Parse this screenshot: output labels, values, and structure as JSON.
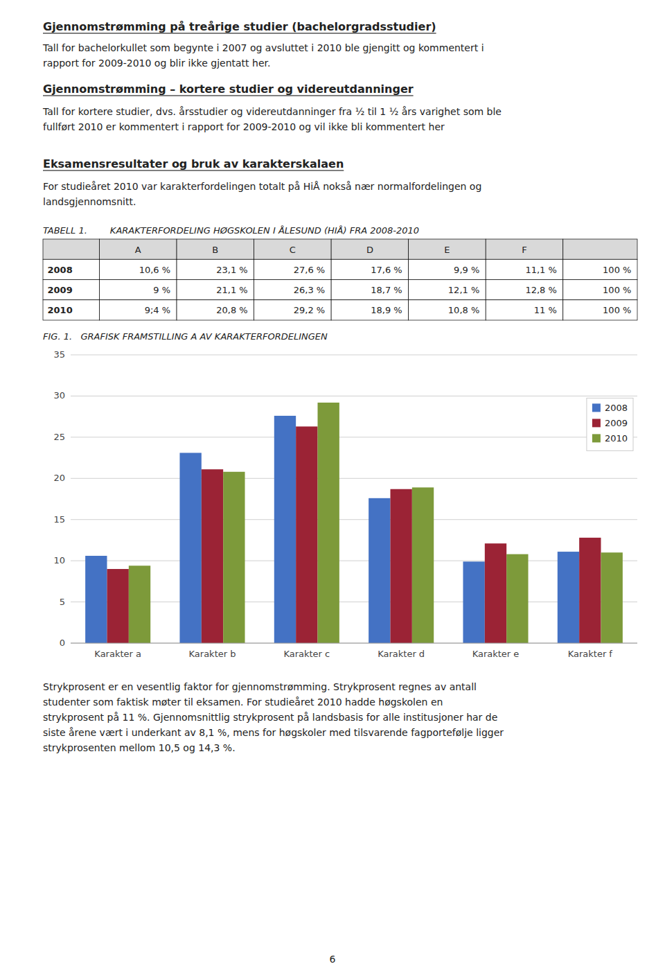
{
  "page_background": "#ffffff",
  "heading1": "Gjennomstrømming på treårige studier (bachelorgradsstudier)",
  "body1_lines": [
    "Tall for bachelorkullet som begynte i 2007 og avsluttet i 2010 ble gjengitt og kommentert i",
    "rapport for 2009-2010 og blir ikke gjentatt her."
  ],
  "heading2": "Gjennomstrømming – kortere studier og videreutdanninger",
  "body2_lines": [
    "Tall for kortere studier, dvs. årsstudier og videreutdanninger fra ½ til 1 ½ års varighet som ble",
    "fullført 2010 er kommentert i rapport for 2009-2010 og vil ikke bli kommentert her"
  ],
  "heading3": "Eksamensresultater og bruk av karakterskalaen",
  "body3_lines": [
    "For studieåret 2010 var karakterfordelingen totalt på HiÅ nokså nær normalfordelingen og",
    "landsgjennomsnitt."
  ],
  "table": {
    "title": "TABELL 1.        KARAKTERFORDELING HØGSKOLEN I ÅLESUND (HIÅ) FRA 2008-2010",
    "headers": [
      null,
      "A",
      "B",
      "C",
      "D",
      "E",
      "F",
      null
    ],
    "rows": [
      [
        "2008",
        "10,6 %",
        "23,1 %",
        "27,6 %",
        "17,6 %",
        "9,9 %",
        "11,1 %",
        "100 %"
      ],
      [
        "2009",
        "9 %",
        "21,1 %",
        "26,3 %",
        "18,7 %",
        "12,1 %",
        "12,8 %",
        "100 %"
      ],
      [
        "2010",
        "9;4 %",
        "20,8 %",
        "29,2 %",
        "18,9 %",
        "10,8 %",
        "11 %",
        "100 %"
      ]
    ],
    "header_color": "#D9D9D9",
    "border_color": "#000000"
  },
  "chart_data": {
    "type": "bar",
    "title": "FIG. 1.   GRAFISK FRAMSTILLING A AV KARAKTERFORDELINGEN",
    "categories": [
      "Karakter a",
      "Karakter b",
      "Karakter c",
      "Karakter d",
      "Karakter e",
      "Karakter f"
    ],
    "series": [
      {
        "name": "2008",
        "color": "#4472C4",
        "values": [
          10.6,
          23.1,
          27.6,
          17.6,
          9.9,
          11.1
        ]
      },
      {
        "name": "2009",
        "color": "#9B2335",
        "values": [
          9.0,
          21.1,
          26.3,
          18.7,
          12.1,
          12.8
        ]
      },
      {
        "name": "2010",
        "color": "#7D9A3A",
        "values": [
          9.4,
          20.8,
          29.2,
          18.9,
          10.8,
          11.0
        ]
      }
    ],
    "ylim": [
      0,
      35
    ],
    "yticks": [
      0,
      5,
      10,
      15,
      20,
      25,
      30,
      35
    ],
    "grid": true,
    "legend": "upper right"
  },
  "body_after_lines": [
    "Strykprosent er en vesentlig faktor for gjennomstrømming. Strykprosent regnes av antall",
    "studenter som faktisk møter til eksamen. For studieåret 2010 hadde høgskolen en",
    "strykprosent på 11 %. Gjennomsnittlig strykprosent på landsbasis for alle institusjoner har de",
    "siste årene vært i underkant av 8,1 %, mens for høgskoler med tilsvarende fagportefølje ligger",
    "strykprosenten mellom 10,5 og 14,3 %."
  ],
  "page_number": "6"
}
